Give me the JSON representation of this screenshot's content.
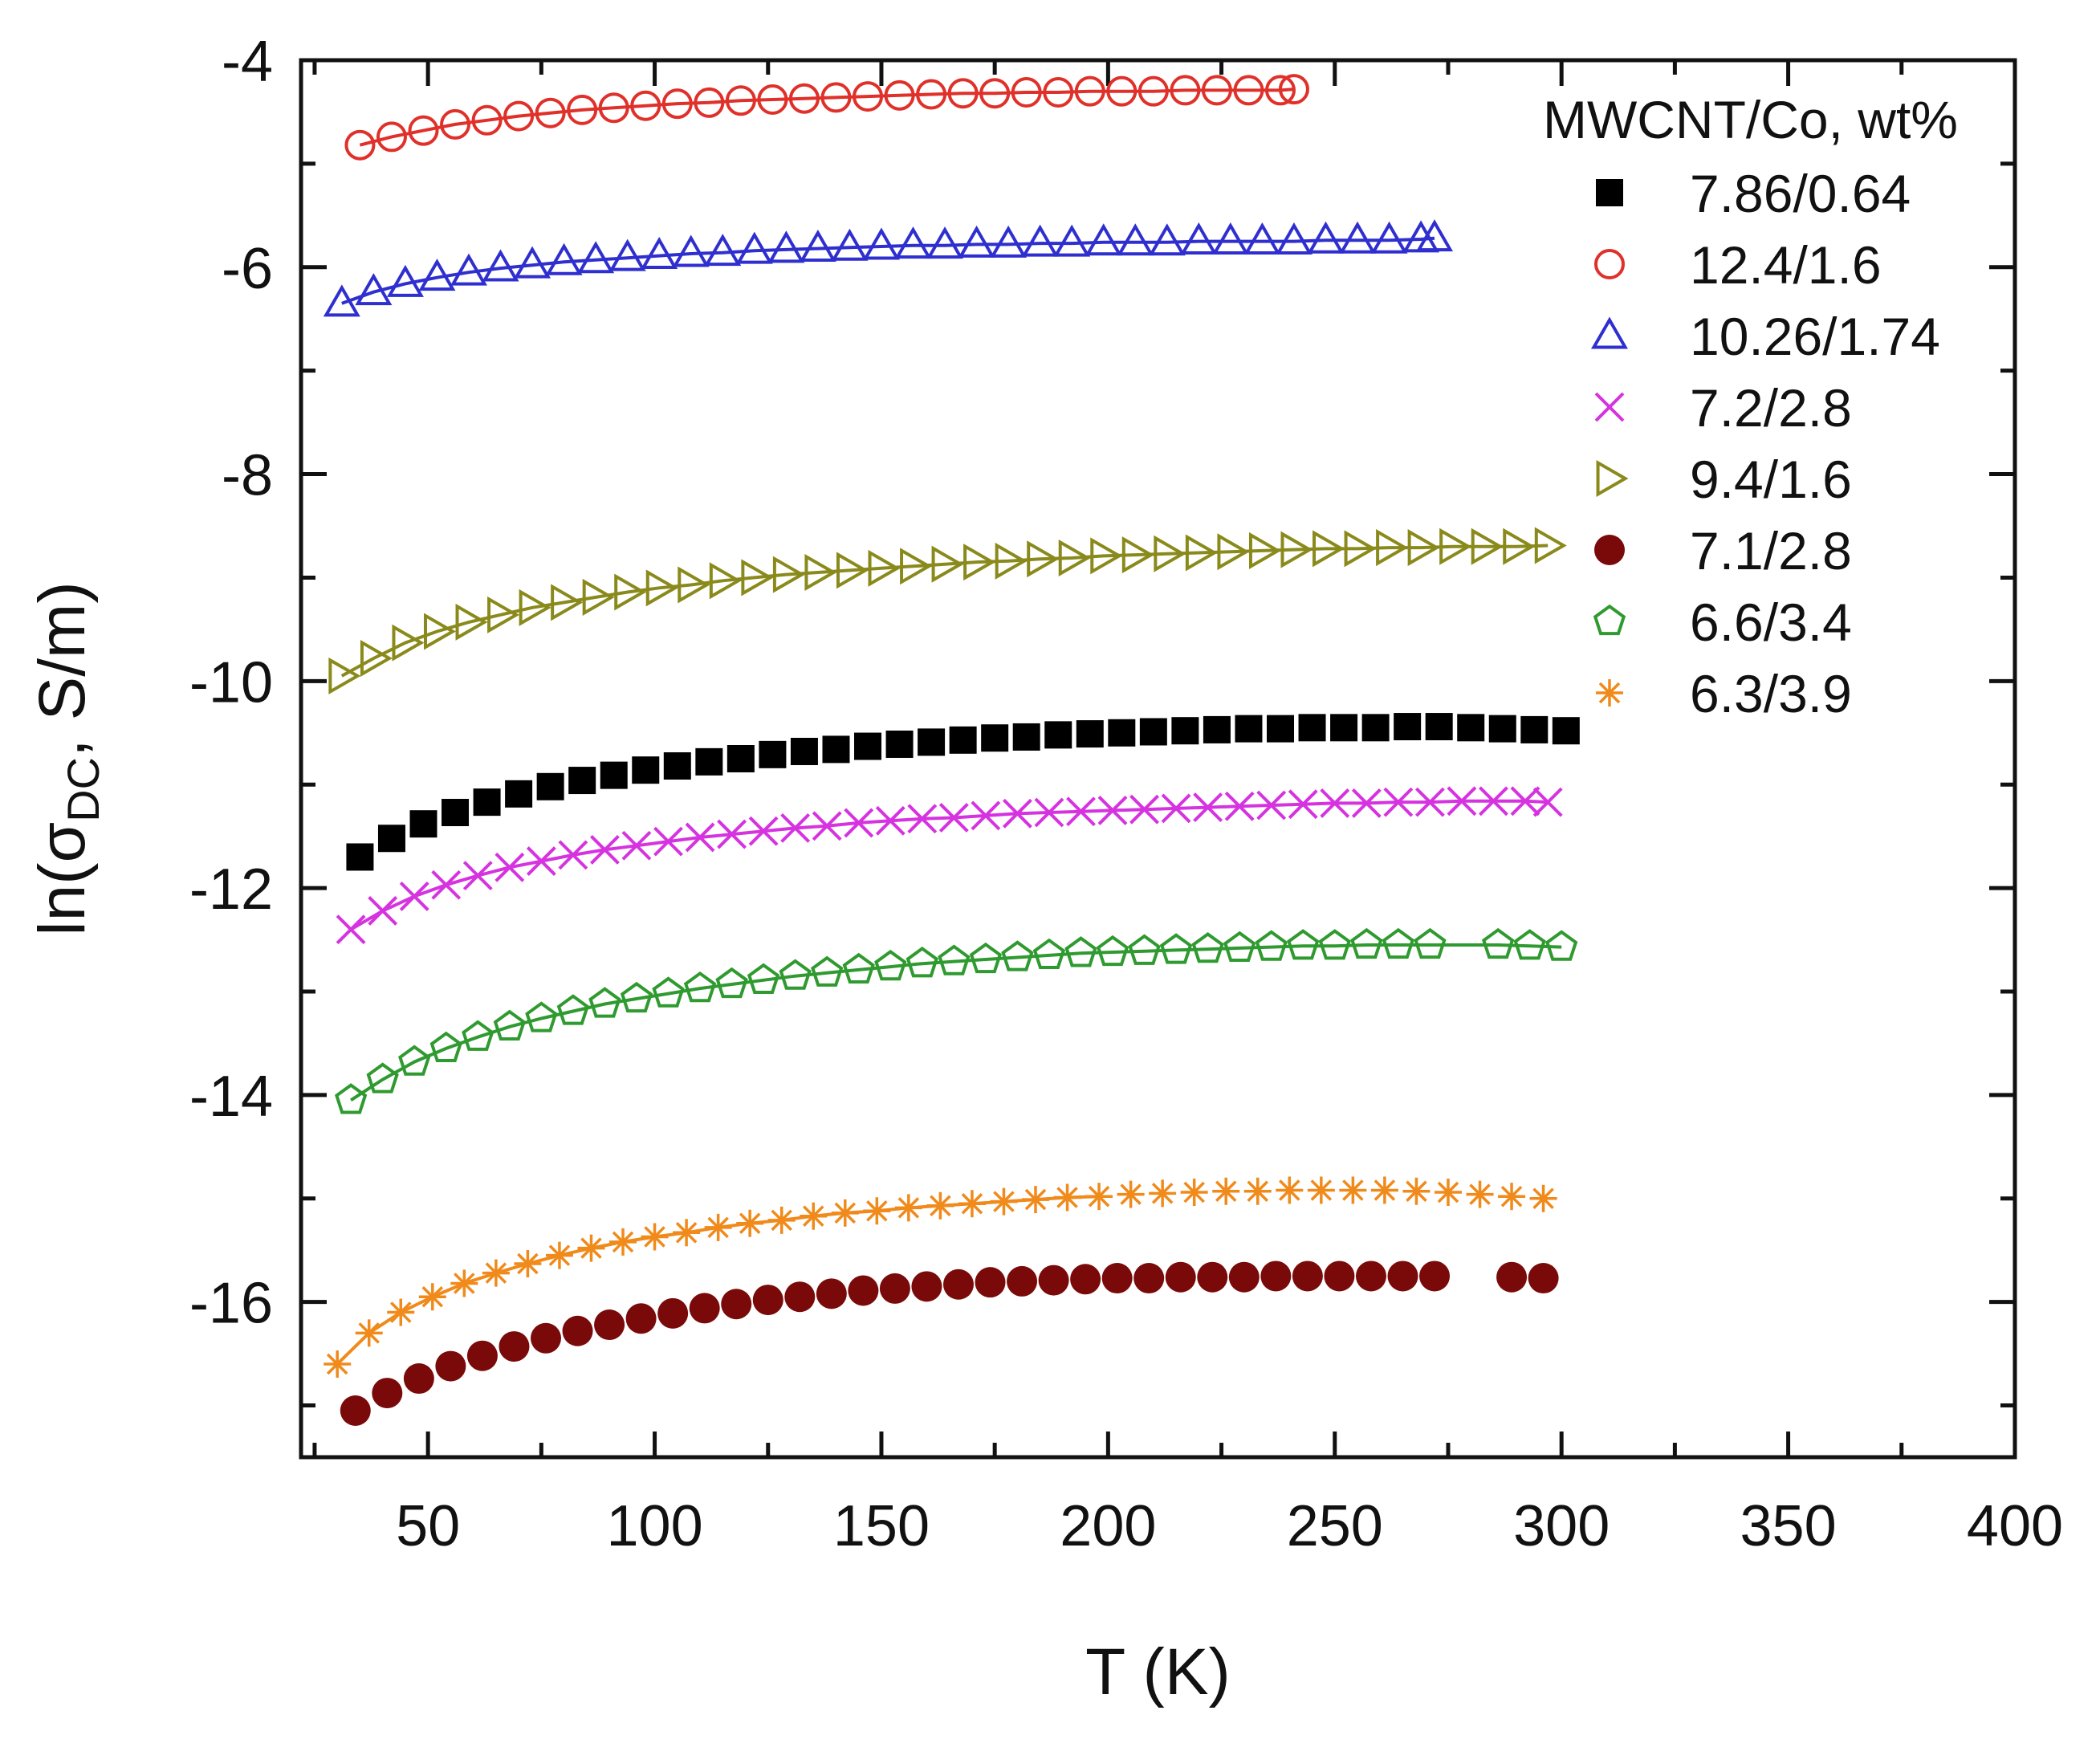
{
  "chart_data": {
    "type": "scatter",
    "title": "",
    "xlabel": "T (K)",
    "ylabel_prefix": "ln(σ",
    "ylabel_sub": "DC",
    "ylabel_suffix": ", S/m)",
    "xlim": [
      22,
      400
    ],
    "ylim": [
      -17.5,
      -4
    ],
    "xticks": [
      50,
      100,
      150,
      200,
      250,
      300,
      350,
      400
    ],
    "yticks": [
      -4,
      -6,
      -8,
      -10,
      -12,
      -14,
      -16
    ],
    "xtick_labels": [
      "50",
      "100",
      "150",
      "200",
      "250",
      "300",
      "350",
      "400"
    ],
    "ytick_labels": [
      "-4",
      "-6",
      "-8",
      "-10",
      "-12",
      "-14",
      "-16"
    ],
    "legend_title": "MWCNT/Co, wt%",
    "legend_position": "top-right",
    "series": [
      {
        "name": "7.86/0.64",
        "marker": "square-filled",
        "color": "#000000",
        "x": [
          35,
          42,
          49,
          56,
          63,
          70,
          77,
          84,
          91,
          98,
          105,
          112,
          119,
          126,
          133,
          140,
          147,
          154,
          161,
          168,
          175,
          182,
          189,
          196,
          203,
          210,
          217,
          224,
          231,
          238,
          245,
          252,
          259,
          266,
          273,
          280,
          287,
          294,
          301
        ],
        "y": [
          -11.7,
          -11.52,
          -11.38,
          -11.27,
          -11.17,
          -11.09,
          -11.02,
          -10.96,
          -10.91,
          -10.86,
          -10.82,
          -10.78,
          -10.75,
          -10.71,
          -10.68,
          -10.66,
          -10.63,
          -10.61,
          -10.59,
          -10.57,
          -10.55,
          -10.54,
          -10.52,
          -10.51,
          -10.5,
          -10.49,
          -10.48,
          -10.47,
          -10.46,
          -10.46,
          -10.45,
          -10.45,
          -10.45,
          -10.44,
          -10.44,
          -10.45,
          -10.46,
          -10.47,
          -10.48
        ],
        "fit": false
      },
      {
        "name": "12.4/1.6",
        "marker": "circle-open",
        "color": "#e0302a",
        "x": [
          35,
          42,
          49,
          56,
          63,
          70,
          77,
          84,
          91,
          98,
          105,
          112,
          119,
          126,
          133,
          140,
          147,
          154,
          161,
          168,
          175,
          182,
          189,
          196,
          203,
          210,
          217,
          224,
          231,
          238,
          241
        ],
        "y": [
          -4.82,
          -4.74,
          -4.68,
          -4.62,
          -4.58,
          -4.54,
          -4.51,
          -4.48,
          -4.46,
          -4.44,
          -4.42,
          -4.41,
          -4.39,
          -4.38,
          -4.37,
          -4.36,
          -4.35,
          -4.34,
          -4.33,
          -4.32,
          -4.32,
          -4.31,
          -4.31,
          -4.3,
          -4.3,
          -4.3,
          -4.29,
          -4.29,
          -4.29,
          -4.29,
          -4.28
        ],
        "fit": true
      },
      {
        "name": "10.26/1.74",
        "marker": "triangle-up-open",
        "color": "#2f2fd0",
        "x": [
          31,
          38,
          45,
          52,
          59,
          66,
          73,
          80,
          87,
          94,
          101,
          108,
          115,
          122,
          129,
          136,
          143,
          150,
          157,
          164,
          171,
          178,
          185,
          192,
          199,
          206,
          213,
          220,
          227,
          234,
          241,
          248,
          255,
          262,
          269,
          272
        ],
        "y": [
          -6.35,
          -6.24,
          -6.16,
          -6.1,
          -6.05,
          -6.01,
          -5.98,
          -5.95,
          -5.93,
          -5.91,
          -5.89,
          -5.87,
          -5.86,
          -5.84,
          -5.83,
          -5.82,
          -5.81,
          -5.8,
          -5.79,
          -5.79,
          -5.78,
          -5.78,
          -5.77,
          -5.77,
          -5.76,
          -5.76,
          -5.76,
          -5.75,
          -5.75,
          -5.75,
          -5.75,
          -5.74,
          -5.74,
          -5.74,
          -5.73,
          -5.72
        ],
        "fit": true
      },
      {
        "name": "7.2/2.8",
        "marker": "x",
        "color": "#d633e0",
        "x": [
          33,
          40,
          47,
          54,
          61,
          68,
          75,
          82,
          89,
          96,
          103,
          110,
          117,
          124,
          131,
          138,
          145,
          152,
          159,
          166,
          173,
          180,
          187,
          194,
          201,
          208,
          215,
          222,
          229,
          236,
          243,
          250,
          257,
          264,
          271,
          278,
          285,
          292,
          297
        ],
        "y": [
          -12.4,
          -12.22,
          -12.08,
          -11.97,
          -11.88,
          -11.8,
          -11.74,
          -11.68,
          -11.63,
          -11.59,
          -11.55,
          -11.51,
          -11.48,
          -11.45,
          -11.42,
          -11.4,
          -11.37,
          -11.35,
          -11.33,
          -11.32,
          -11.3,
          -11.28,
          -11.27,
          -11.26,
          -11.25,
          -11.24,
          -11.23,
          -11.22,
          -11.21,
          -11.2,
          -11.19,
          -11.18,
          -11.18,
          -11.17,
          -11.17,
          -11.16,
          -11.16,
          -11.16,
          -11.17
        ],
        "fit": true
      },
      {
        "name": "9.4/1.6",
        "marker": "triangle-right-open",
        "color": "#8a8a1c",
        "x": [
          31,
          38,
          45,
          52,
          59,
          66,
          73,
          80,
          87,
          94,
          101,
          108,
          115,
          122,
          129,
          136,
          143,
          150,
          157,
          164,
          171,
          178,
          185,
          192,
          199,
          206,
          213,
          220,
          227,
          234,
          241,
          248,
          255,
          262,
          269,
          276,
          283,
          290,
          297
        ],
        "y": [
          -9.95,
          -9.78,
          -9.63,
          -9.52,
          -9.43,
          -9.36,
          -9.29,
          -9.24,
          -9.19,
          -9.14,
          -9.1,
          -9.07,
          -9.03,
          -9.0,
          -8.97,
          -8.95,
          -8.93,
          -8.91,
          -8.89,
          -8.87,
          -8.85,
          -8.84,
          -8.82,
          -8.81,
          -8.79,
          -8.78,
          -8.77,
          -8.76,
          -8.75,
          -8.74,
          -8.73,
          -8.72,
          -8.72,
          -8.71,
          -8.71,
          -8.7,
          -8.7,
          -8.7,
          -8.69
        ],
        "fit": true
      },
      {
        "name": "7.1/2.8",
        "marker": "circle-filled",
        "color": "#7a0a0a",
        "x": [
          34,
          41,
          48,
          55,
          62,
          69,
          76,
          83,
          90,
          97,
          104,
          111,
          118,
          125,
          132,
          139,
          146,
          153,
          160,
          167,
          174,
          181,
          188,
          195,
          202,
          209,
          216,
          223,
          230,
          237,
          244,
          251,
          258,
          265,
          272,
          289,
          296
        ],
        "y": [
          -17.05,
          -16.88,
          -16.74,
          -16.62,
          -16.52,
          -16.43,
          -16.35,
          -16.28,
          -16.22,
          -16.16,
          -16.11,
          -16.06,
          -16.02,
          -15.98,
          -15.95,
          -15.92,
          -15.89,
          -15.87,
          -15.85,
          -15.83,
          -15.81,
          -15.8,
          -15.79,
          -15.78,
          -15.77,
          -15.77,
          -15.76,
          -15.76,
          -15.76,
          -15.75,
          -15.75,
          -15.75,
          -15.75,
          -15.75,
          -15.75,
          -15.76,
          -15.77
        ],
        "fit": false
      },
      {
        "name": "6.6/3.4",
        "marker": "pentagon-open",
        "color": "#2f9a2f",
        "x": [
          33,
          40,
          47,
          54,
          61,
          68,
          75,
          82,
          89,
          96,
          103,
          110,
          117,
          124,
          131,
          138,
          145,
          152,
          159,
          166,
          173,
          180,
          187,
          194,
          201,
          208,
          215,
          222,
          229,
          236,
          243,
          250,
          257,
          264,
          271,
          286,
          293,
          300
        ],
        "y": [
          -14.05,
          -13.85,
          -13.68,
          -13.55,
          -13.44,
          -13.34,
          -13.26,
          -13.19,
          -13.12,
          -13.07,
          -13.02,
          -12.97,
          -12.93,
          -12.89,
          -12.85,
          -12.82,
          -12.79,
          -12.76,
          -12.73,
          -12.71,
          -12.69,
          -12.67,
          -12.65,
          -12.63,
          -12.62,
          -12.61,
          -12.6,
          -12.59,
          -12.58,
          -12.57,
          -12.56,
          -12.56,
          -12.55,
          -12.55,
          -12.55,
          -12.55,
          -12.56,
          -12.57
        ],
        "fit": true
      },
      {
        "name": "6.3/3.9",
        "marker": "asterisk",
        "color": "#f08a1a",
        "x": [
          30,
          37,
          44,
          51,
          58,
          65,
          72,
          79,
          86,
          93,
          100,
          107,
          114,
          121,
          128,
          135,
          142,
          149,
          156,
          163,
          170,
          177,
          184,
          191,
          198,
          205,
          212,
          219,
          226,
          233,
          240,
          247,
          254,
          261,
          268,
          275,
          282,
          289,
          296
        ],
        "y": [
          -16.6,
          -16.3,
          -16.1,
          -15.95,
          -15.82,
          -15.72,
          -15.63,
          -15.55,
          -15.48,
          -15.42,
          -15.37,
          -15.33,
          -15.28,
          -15.24,
          -15.21,
          -15.17,
          -15.14,
          -15.12,
          -15.09,
          -15.07,
          -15.05,
          -15.03,
          -15.01,
          -14.99,
          -14.98,
          -14.96,
          -14.95,
          -14.94,
          -14.93,
          -14.93,
          -14.92,
          -14.92,
          -14.92,
          -14.92,
          -14.93,
          -14.94,
          -14.96,
          -14.98,
          -15.0
        ],
        "fit": true,
        "fit_x_max": 200
      }
    ]
  }
}
